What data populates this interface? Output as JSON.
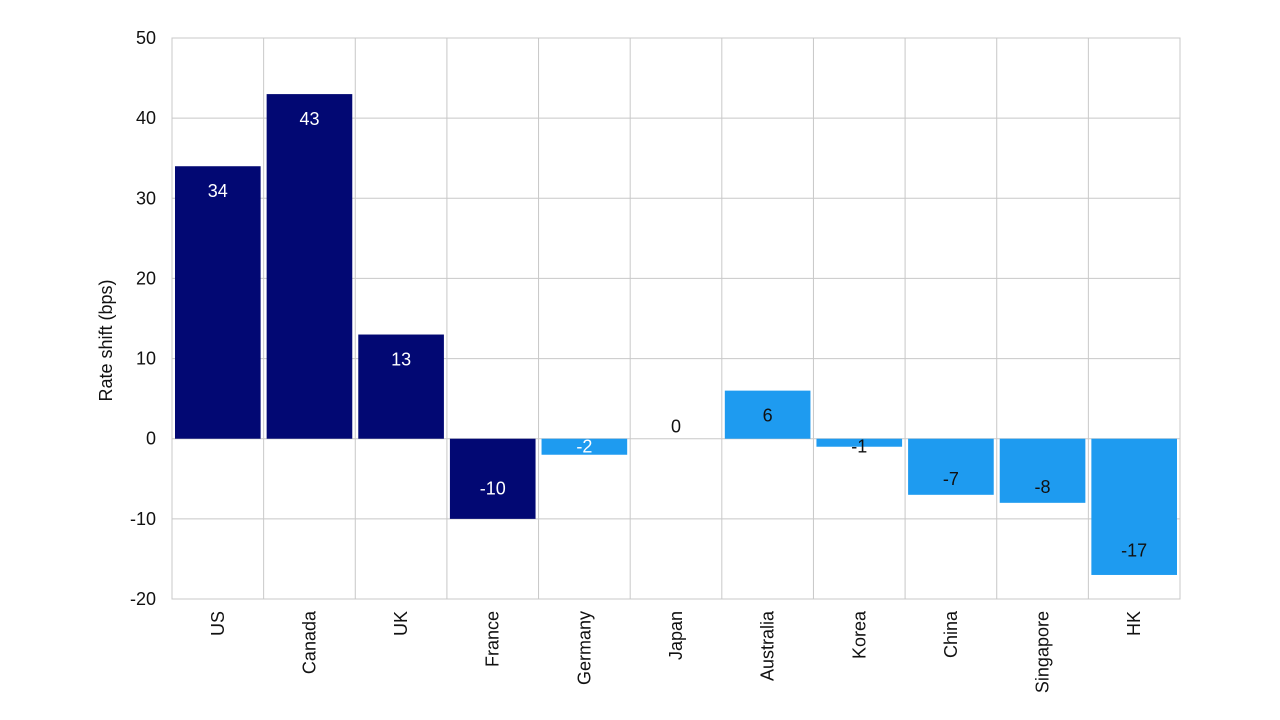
{
  "chart_data": {
    "type": "bar",
    "title": "",
    "xlabel": "",
    "ylabel": "Rate shift (bps)",
    "ylim": [
      -20,
      50
    ],
    "yticks": [
      50,
      40,
      30,
      20,
      10,
      0,
      -10,
      -20
    ],
    "grid": true,
    "categories": [
      "US",
      "Canada",
      "UK",
      "France",
      "Germany",
      "Japan",
      "Australia",
      "Korea",
      "China",
      "Singapore",
      "HK"
    ],
    "values": [
      34,
      43,
      13,
      -10,
      -2,
      0,
      6,
      -1,
      -7,
      -8,
      -17
    ],
    "value_labels": [
      "34",
      "43",
      "13",
      "-10",
      "-2",
      "0",
      "6",
      "-1",
      "-7",
      "-8",
      "-17"
    ],
    "bar_colors": [
      "#020873",
      "#020873",
      "#020873",
      "#020873",
      "#1E9BF0",
      "#1E9BF0",
      "#1E9BF0",
      "#1E9BF0",
      "#1E9BF0",
      "#1E9BF0",
      "#1E9BF0"
    ],
    "label_colors": [
      "#ffffff",
      "#ffffff",
      "#ffffff",
      "#ffffff",
      "#ffffff",
      "#111111",
      "#111111",
      "#111111",
      "#111111",
      "#111111",
      "#111111"
    ]
  }
}
